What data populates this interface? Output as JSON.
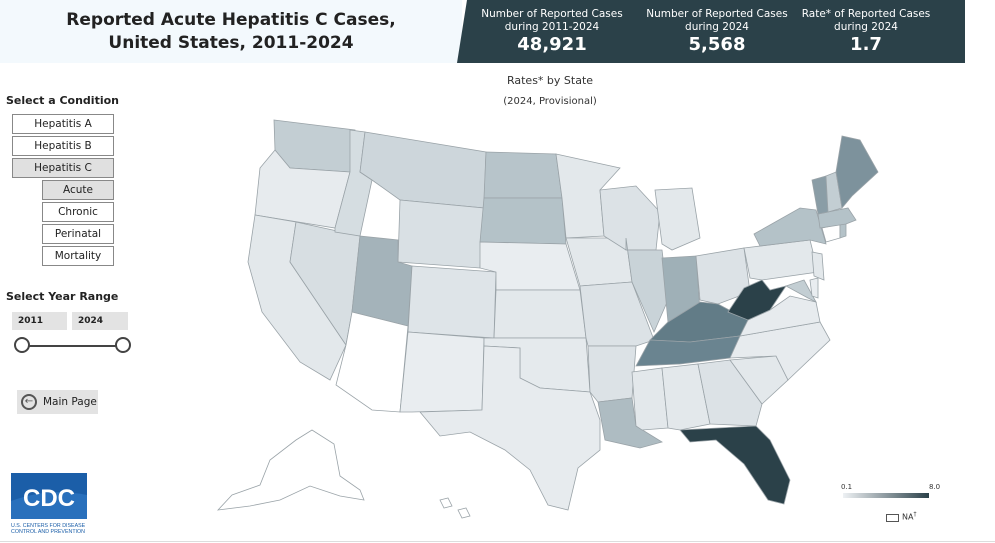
{
  "header": {
    "title_line1": "Reported Acute Hepatitis C Cases,",
    "title_line2": "United States, 2011-2024",
    "stats": [
      {
        "label1": "Number of Reported Cases",
        "label2": "during 2011-2024",
        "value": "48,921"
      },
      {
        "label1": "Number of Reported Cases",
        "label2": "during 2024",
        "value": "5,568"
      },
      {
        "label1": "Rate* of Reported Cases",
        "label2": "during 2024",
        "value": "1.7"
      }
    ]
  },
  "map": {
    "title": "Rates* by State",
    "subtitle": "(2024, Provisional)",
    "legend_min": "0.1",
    "legend_max": "8.0",
    "na_label": "NA",
    "na_sup": "†",
    "colors": {
      "low": "#eef1f4",
      "high": "#2b4149"
    }
  },
  "sidebar": {
    "condition_heading": "Select a Condition",
    "conditions": [
      {
        "label": "Hepatitis A",
        "selected": false
      },
      {
        "label": "Hepatitis B",
        "selected": false
      },
      {
        "label": "Hepatitis C",
        "selected": true
      }
    ],
    "subconditions": [
      {
        "label": "Acute",
        "selected": true
      },
      {
        "label": "Chronic",
        "selected": false
      },
      {
        "label": "Perinatal",
        "selected": false
      },
      {
        "label": "Mortality",
        "selected": false
      }
    ],
    "year_heading": "Select Year Range",
    "year_start": "2011",
    "year_end": "2024",
    "main_page_label": "Main Page"
  },
  "logo": {
    "text": "CDC",
    "tag1": "U.S. CENTERS FOR DISEASE",
    "tag2": "CONTROL AND PREVENTION"
  }
}
